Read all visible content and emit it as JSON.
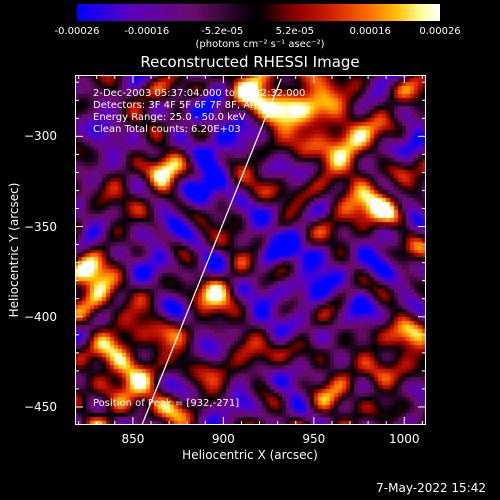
{
  "colorbar": {
    "ticks": [
      "-0.00026",
      "-0.00016",
      "-5.2e-05",
      "5.2e-05",
      "0.00016",
      "0.00026"
    ],
    "tick_values": [
      -0.00026,
      -0.00016,
      -5.2e-05,
      5.2e-05,
      0.00016,
      0.00026
    ],
    "range": [
      -0.00026,
      0.00026
    ],
    "units": "(photons cm⁻² s⁻¹ asec⁻²)",
    "colors": [
      "#0000ff",
      "#5f00c0",
      "#6a0d6a",
      "#000000",
      "#8b0000",
      "#d22000",
      "#ff6a00",
      "#ffc000",
      "#ffff9a",
      "#ffffff"
    ]
  },
  "info": {
    "time_range": "2-Dec-2003 05:37:04.000 to 05:42:32.000",
    "detectors": "Detectors: 3F 4F 5F 6F 7F 8F, Att:0",
    "energy": "Energy Range: 25.0 - 50.0 keV",
    "method": "Clean     Total counts: 6.20E+03",
    "peak": "Position of Peak = [932,-271]"
  },
  "footer": {
    "timestamp": "7-May-2022 15:42"
  },
  "chart_data": {
    "type": "heatmap",
    "title": "Reconstructed RHESSI Image",
    "xlabel": "Heliocentric X (arcsec)",
    "ylabel": "Heliocentric Y (arcsec)",
    "xlim": [
      818,
      1012
    ],
    "ylim": [
      -460,
      -266
    ],
    "xticks": [
      850,
      900,
      950,
      1000
    ],
    "yticks": [
      -300,
      -350,
      -400,
      -450
    ],
    "limb_line": [
      [
        855,
        -460
      ],
      [
        932,
        -268
      ]
    ],
    "peak": [
      932,
      -271
    ],
    "bright_sources": [
      {
        "x": 945,
        "y": -285,
        "value": 0.00026,
        "rx": 16,
        "ry": 12
      },
      {
        "x": 920,
        "y": -275,
        "value": 0.00022,
        "rx": 10,
        "ry": 8
      },
      {
        "x": 968,
        "y": -305,
        "value": 0.00022,
        "rx": 10,
        "ry": 9
      },
      {
        "x": 975,
        "y": -335,
        "value": 0.0002,
        "rx": 12,
        "ry": 9
      },
      {
        "x": 990,
        "y": -345,
        "value": 0.00014,
        "rx": 8,
        "ry": 7
      },
      {
        "x": 868,
        "y": -318,
        "value": 0.00022,
        "rx": 7,
        "ry": 10
      },
      {
        "x": 825,
        "y": -375,
        "value": 0.00024,
        "rx": 8,
        "ry": 10
      },
      {
        "x": 832,
        "y": -390,
        "value": 0.0002,
        "rx": 7,
        "ry": 8
      },
      {
        "x": 850,
        "y": -420,
        "value": 0.00022,
        "rx": 12,
        "ry": 10
      },
      {
        "x": 840,
        "y": -440,
        "value": 0.00018,
        "rx": 10,
        "ry": 8
      },
      {
        "x": 870,
        "y": -447,
        "value": 0.00016,
        "rx": 8,
        "ry": 6
      },
      {
        "x": 898,
        "y": -392,
        "value": 0.00016,
        "rx": 8,
        "ry": 7
      },
      {
        "x": 920,
        "y": -425,
        "value": 0.00014,
        "rx": 7,
        "ry": 7
      },
      {
        "x": 960,
        "y": -445,
        "value": 0.00018,
        "rx": 9,
        "ry": 7
      },
      {
        "x": 1000,
        "y": -418,
        "value": 0.00018,
        "rx": 9,
        "ry": 10
      },
      {
        "x": 985,
        "y": -432,
        "value": 0.00012,
        "rx": 6,
        "ry": 6
      },
      {
        "x": 842,
        "y": -338,
        "value": 0.0001,
        "rx": 6,
        "ry": 6
      },
      {
        "x": 905,
        "y": -355,
        "value": 8e-05,
        "rx": 6,
        "ry": 6
      }
    ],
    "negative_sources": [
      {
        "x": 895,
        "y": -300,
        "value": -0.00024,
        "rx": 10,
        "ry": 12
      },
      {
        "x": 888,
        "y": -335,
        "value": -0.0002,
        "rx": 10,
        "ry": 9
      },
      {
        "x": 930,
        "y": -360,
        "value": -0.00022,
        "rx": 10,
        "ry": 9
      },
      {
        "x": 835,
        "y": -300,
        "value": -0.00018,
        "rx": 8,
        "ry": 8
      },
      {
        "x": 865,
        "y": -365,
        "value": -0.0002,
        "rx": 9,
        "ry": 8
      },
      {
        "x": 950,
        "y": -380,
        "value": -0.00022,
        "rx": 8,
        "ry": 10
      },
      {
        "x": 985,
        "y": -370,
        "value": -0.00018,
        "rx": 9,
        "ry": 8
      },
      {
        "x": 925,
        "y": -400,
        "value": -0.0002,
        "rx": 8,
        "ry": 7
      },
      {
        "x": 975,
        "y": -395,
        "value": -0.00016,
        "rx": 7,
        "ry": 7
      },
      {
        "x": 938,
        "y": -440,
        "value": -0.00018,
        "rx": 8,
        "ry": 7
      },
      {
        "x": 1005,
        "y": -455,
        "value": -0.00014,
        "rx": 6,
        "ry": 6
      },
      {
        "x": 825,
        "y": -350,
        "value": -0.00016,
        "rx": 6,
        "ry": 8
      },
      {
        "x": 1005,
        "y": -310,
        "value": -0.00012,
        "rx": 5,
        "ry": 8
      },
      {
        "x": 910,
        "y": -450,
        "value": -0.00014,
        "rx": 7,
        "ry": 6
      }
    ]
  }
}
